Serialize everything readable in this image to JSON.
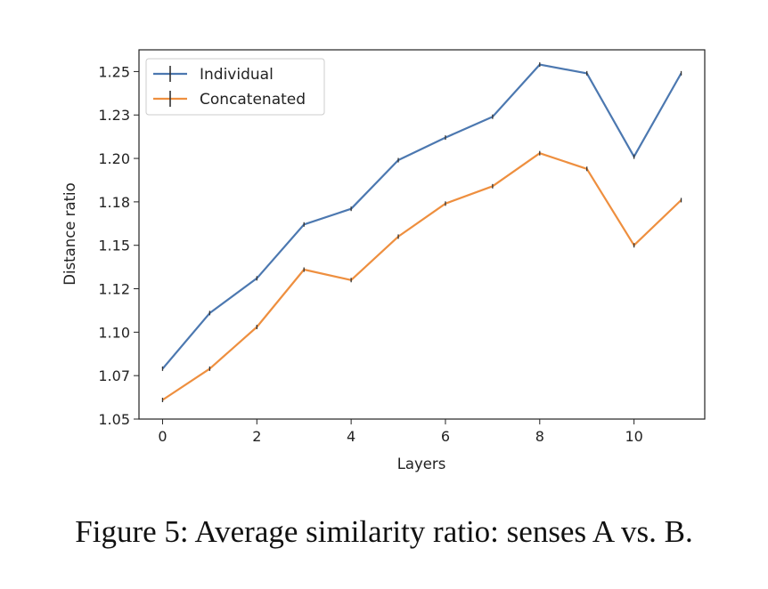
{
  "caption": "Figure 5: Average similarity ratio: senses A vs. B.",
  "chart_data": {
    "type": "line",
    "xlabel": "Layers",
    "ylabel": "Distance ratio",
    "xlim": [
      -0.5,
      11.5
    ],
    "ylim": [
      1.05,
      1.2625
    ],
    "xticks": [
      0,
      2,
      4,
      6,
      8,
      10
    ],
    "yticks": [
      1.05,
      1.075,
      1.1,
      1.125,
      1.15,
      1.175,
      1.2,
      1.225,
      1.25
    ],
    "ytick_labels": [
      "1.05",
      "1.07",
      "1.10",
      "1.12",
      "1.15",
      "1.18",
      "1.20",
      "1.23",
      "1.25"
    ],
    "x": [
      0,
      1,
      2,
      3,
      4,
      5,
      6,
      7,
      8,
      9,
      10,
      11
    ],
    "grid": false,
    "legend": "top-left",
    "series": [
      {
        "name": "Individual",
        "color": "#4c78b0",
        "values": [
          1.079,
          1.111,
          1.131,
          1.162,
          1.171,
          1.199,
          1.212,
          1.224,
          1.254,
          1.249,
          1.201,
          1.249
        ]
      },
      {
        "name": "Concatenated",
        "color": "#ee8f3f",
        "values": [
          1.061,
          1.079,
          1.103,
          1.136,
          1.13,
          1.155,
          1.174,
          1.184,
          1.203,
          1.194,
          1.15,
          1.176
        ]
      }
    ]
  }
}
